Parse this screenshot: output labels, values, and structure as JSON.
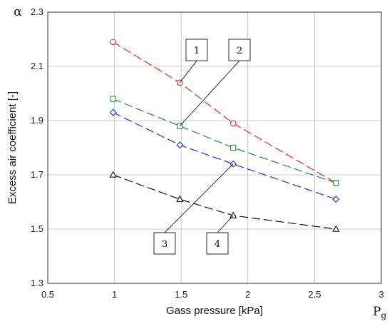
{
  "chart_data": {
    "type": "line",
    "xlabel": "Gass pressure [kPa]",
    "ylabel": "Excess air coefficient [-]",
    "x_symbol": "P",
    "x_symbol_sub": "g",
    "y_symbol": "α",
    "xlim": [
      0.5,
      3
    ],
    "ylim": [
      1.3,
      2.3
    ],
    "x_ticks": [
      "0.5",
      "1",
      "1.5",
      "2",
      "2.5",
      "3"
    ],
    "y_ticks": [
      "1.3",
      "1.5",
      "1.7",
      "1.9",
      "2.1",
      "2.3"
    ],
    "grid": true,
    "series": [
      {
        "name": "1",
        "color": "#e8261c",
        "marker": "circle",
        "x": [
          0.99,
          1.49,
          1.89,
          2.66
        ],
        "y": [
          2.19,
          2.04,
          1.89,
          1.67
        ]
      },
      {
        "name": "2",
        "color": "#1f8a3a",
        "marker": "square",
        "x": [
          0.99,
          1.49,
          1.89,
          2.66
        ],
        "y": [
          1.98,
          1.88,
          1.8,
          1.67
        ]
      },
      {
        "name": "3",
        "color": "#1c2ee0",
        "marker": "diamond",
        "x": [
          0.99,
          1.49,
          1.89,
          2.66
        ],
        "y": [
          1.93,
          1.81,
          1.74,
          1.61
        ]
      },
      {
        "name": "4",
        "color": "#111111",
        "marker": "triangle",
        "x": [
          0.99,
          1.49,
          1.89,
          2.66
        ],
        "y": [
          1.7,
          1.61,
          1.55,
          1.5
        ]
      }
    ]
  }
}
